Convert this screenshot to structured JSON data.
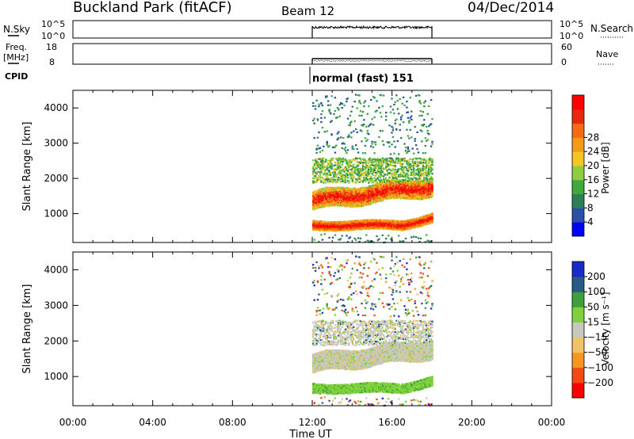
{
  "header": {
    "station": "Buckland Park (fitACF)",
    "beam": "Beam 12",
    "date": "04/Dec/2014"
  },
  "params": {
    "nsky_label": "N.Sky",
    "nsearch_label": "N.Search",
    "freq_label_1": "Freq.",
    "freq_label_2": "[MHz]",
    "nave_label": "Nave",
    "cpid_label": "CPID",
    "noise_ticks": [
      "10^5",
      "10^0"
    ],
    "freq_ticks": [
      "18",
      "8"
    ],
    "nave_ticks": [
      "60",
      "0"
    ],
    "cpid_text": "normal (fast) 151"
  },
  "colors": {
    "power": [
      "#0000ff",
      "#2a4fa8",
      "#2f7f56",
      "#3fa83f",
      "#8fcc3f",
      "#f2c71f",
      "#f59a16",
      "#f56a12",
      "#e8280c",
      "#ff0000"
    ],
    "velocity": [
      "#ff0000",
      "#f24a12",
      "#f79620",
      "#f2c266",
      "#c8c8c0",
      "#7fd23a",
      "#3f9f3f",
      "#2a5a86",
      "#1a2ac8"
    ]
  },
  "chart_data": [
    {
      "type": "heatmap",
      "title": "Power",
      "xlabel": "Time UT",
      "ylabel": "Slant Range [km]",
      "xlim": [
        "00:00",
        "24:00"
      ],
      "x_ticks": [
        "00:00",
        "04:00",
        "08:00",
        "12:00",
        "16:00",
        "20:00",
        "00:00"
      ],
      "ylim": [
        180,
        4500
      ],
      "y_ticks": [
        1000,
        2000,
        3000,
        4000
      ],
      "colorbar_label": "Power [dB]",
      "colorbar_ticks": [
        "4",
        "8",
        "12",
        "16",
        "20",
        "24",
        "28"
      ],
      "data_time_range": [
        "12:00",
        "18:00"
      ],
      "features": [
        {
          "range_km": [
            600,
            800
          ],
          "dominant_power_db": 26
        },
        {
          "range_km": [
            1100,
            1700
          ],
          "dominant_power_db": 24
        },
        {
          "range_km": [
            1800,
            2600
          ],
          "dominant_power_db": 8
        }
      ]
    },
    {
      "type": "heatmap",
      "title": "Velocity",
      "xlabel": "Time UT",
      "ylabel": "Slant Range [km]",
      "xlim": [
        "00:00",
        "24:00"
      ],
      "x_ticks": [
        "00:00",
        "04:00",
        "08:00",
        "12:00",
        "16:00",
        "20:00",
        "00:00"
      ],
      "ylim": [
        180,
        4500
      ],
      "y_ticks": [
        1000,
        2000,
        3000,
        4000
      ],
      "colorbar_label": "Velocity [m s⁻¹]",
      "colorbar_ticks": [
        "−200",
        "−100",
        "−50",
        "−15",
        "15",
        "50",
        "100",
        "200"
      ],
      "data_time_range": [
        "12:00",
        "18:00"
      ],
      "features": [
        {
          "range_km": [
            600,
            1000
          ],
          "dominant_velocity": "15 to 50"
        },
        {
          "range_km": [
            1100,
            1800
          ],
          "dominant_velocity": "-15 to 15"
        },
        {
          "range_km": [
            1900,
            2500
          ],
          "dominant_velocity": "-15 to 15"
        }
      ]
    }
  ]
}
